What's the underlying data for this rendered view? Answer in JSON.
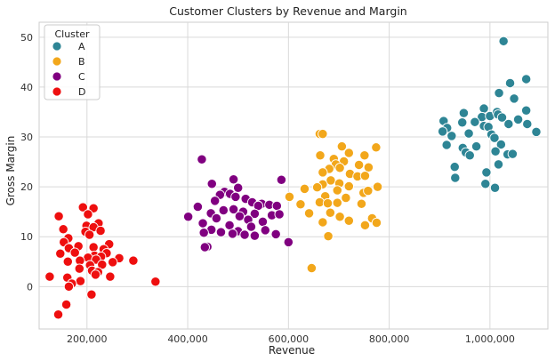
{
  "chart_data": {
    "type": "scatter",
    "title": "Customer Clusters by Revenue and Margin",
    "xlabel": "Revenue",
    "ylabel": "Gross Margin",
    "xlim": [
      105000,
      1115000
    ],
    "ylim": [
      -8.5,
      53
    ],
    "x_ticks": [
      200000,
      400000,
      600000,
      800000,
      1000000
    ],
    "x_tick_labels": [
      "200,000",
      "400,000",
      "600,000",
      "800,000",
      "1,000,000"
    ],
    "y_ticks": [
      0,
      10,
      20,
      30,
      40,
      50
    ],
    "y_tick_labels": [
      "0",
      "10",
      "20",
      "30",
      "40",
      "50"
    ],
    "grid": true,
    "legend": {
      "title": "Cluster",
      "placement": "top-left"
    },
    "series": [
      {
        "name": "A",
        "color": "#2e8595",
        "points": [
          [
            1027000,
            49.2
          ],
          [
            1072000,
            41.6
          ],
          [
            1040000,
            40.8
          ],
          [
            1018000,
            38.8
          ],
          [
            1048000,
            37.7
          ],
          [
            988000,
            35.7
          ],
          [
            1072000,
            35.3
          ],
          [
            948000,
            34.8
          ],
          [
            984000,
            34.0
          ],
          [
            1000000,
            34.2
          ],
          [
            1014000,
            35.0
          ],
          [
            1016000,
            34.5
          ],
          [
            1024000,
            33.9
          ],
          [
            908000,
            33.2
          ],
          [
            1056000,
            33.5
          ],
          [
            970000,
            33.0
          ],
          [
            945000,
            32.9
          ],
          [
            988000,
            32.2
          ],
          [
            1037000,
            32.6
          ],
          [
            1074000,
            32.6
          ],
          [
            997000,
            32.0
          ],
          [
            915000,
            31.8
          ],
          [
            906000,
            31.1
          ],
          [
            924000,
            30.2
          ],
          [
            958000,
            30.7
          ],
          [
            1003000,
            30.5
          ],
          [
            1009000,
            29.8
          ],
          [
            1092000,
            31.0
          ],
          [
            914000,
            28.4
          ],
          [
            946000,
            27.8
          ],
          [
            973000,
            28.1
          ],
          [
            1022000,
            28.5
          ],
          [
            952000,
            26.9
          ],
          [
            1011000,
            27.1
          ],
          [
            1035000,
            26.5
          ],
          [
            960000,
            26.3
          ],
          [
            1045000,
            26.6
          ],
          [
            930000,
            24.0
          ],
          [
            1017000,
            24.5
          ],
          [
            931000,
            21.8
          ],
          [
            993000,
            22.9
          ],
          [
            991000,
            20.6
          ],
          [
            1010000,
            19.8
          ]
        ]
      },
      {
        "name": "B",
        "color": "#f2a71b",
        "points": [
          [
            662000,
            30.6
          ],
          [
            668000,
            30.6
          ],
          [
            706000,
            28.1
          ],
          [
            720000,
            26.8
          ],
          [
            663000,
            26.3
          ],
          [
            751000,
            26.3
          ],
          [
            774000,
            27.9
          ],
          [
            690000,
            25.6
          ],
          [
            710000,
            25.1
          ],
          [
            694000,
            24.5
          ],
          [
            740000,
            24.4
          ],
          [
            681000,
            23.6
          ],
          [
            702000,
            23.8
          ],
          [
            759000,
            23.9
          ],
          [
            668000,
            22.9
          ],
          [
            722000,
            22.6
          ],
          [
            737000,
            22.1
          ],
          [
            752000,
            22.2
          ],
          [
            684000,
            21.3
          ],
          [
            701000,
            20.7
          ],
          [
            668000,
            20.5
          ],
          [
            720000,
            20.1
          ],
          [
            777000,
            20.0
          ],
          [
            602000,
            18.0
          ],
          [
            632000,
            19.6
          ],
          [
            657000,
            19.9
          ],
          [
            697000,
            19.3
          ],
          [
            749000,
            18.8
          ],
          [
            758000,
            19.2
          ],
          [
            673000,
            18.1
          ],
          [
            714000,
            17.8
          ],
          [
            662000,
            16.9
          ],
          [
            678000,
            16.7
          ],
          [
            697000,
            16.8
          ],
          [
            745000,
            16.6
          ],
          [
            624000,
            16.5
          ],
          [
            641000,
            14.7
          ],
          [
            683000,
            14.8
          ],
          [
            702000,
            14.0
          ],
          [
            720000,
            13.2
          ],
          [
            766000,
            13.7
          ],
          [
            775000,
            12.8
          ],
          [
            752000,
            12.3
          ],
          [
            668000,
            12.9
          ],
          [
            679000,
            10.1
          ],
          [
            646000,
            3.7
          ]
        ]
      },
      {
        "name": "C",
        "color": "#800080",
        "points": [
          [
            428000,
            25.5
          ],
          [
            491000,
            21.5
          ],
          [
            586000,
            21.4
          ],
          [
            448000,
            20.6
          ],
          [
            500000,
            19.8
          ],
          [
            473000,
            19.0
          ],
          [
            484000,
            18.6
          ],
          [
            464000,
            18.4
          ],
          [
            495000,
            18.0
          ],
          [
            515000,
            17.6
          ],
          [
            454000,
            17.2
          ],
          [
            528000,
            16.9
          ],
          [
            547000,
            16.6
          ],
          [
            562000,
            16.4
          ],
          [
            540000,
            16.2
          ],
          [
            577000,
            16.2
          ],
          [
            420000,
            16.0
          ],
          [
            491000,
            15.5
          ],
          [
            471000,
            15.3
          ],
          [
            510000,
            15.0
          ],
          [
            446000,
            14.7
          ],
          [
            533000,
            14.6
          ],
          [
            567000,
            14.3
          ],
          [
            503000,
            14.1
          ],
          [
            582000,
            14.5
          ],
          [
            401000,
            14.0
          ],
          [
            457000,
            13.7
          ],
          [
            520000,
            13.4
          ],
          [
            549000,
            13.0
          ],
          [
            430000,
            12.7
          ],
          [
            483000,
            12.3
          ],
          [
            526000,
            12.0
          ],
          [
            447000,
            11.4
          ],
          [
            500000,
            11.1
          ],
          [
            554000,
            11.3
          ],
          [
            466000,
            10.9
          ],
          [
            489000,
            10.6
          ],
          [
            432000,
            10.8
          ],
          [
            575000,
            10.5
          ],
          [
            513000,
            10.4
          ],
          [
            533000,
            10.2
          ],
          [
            439000,
            8.0
          ],
          [
            434000,
            7.9
          ],
          [
            600000,
            8.9
          ]
        ]
      },
      {
        "name": "D",
        "color": "#ee0f0f",
        "points": [
          [
            192000,
            15.9
          ],
          [
            213000,
            15.7
          ],
          [
            202000,
            14.5
          ],
          [
            144000,
            14.1
          ],
          [
            223000,
            12.7
          ],
          [
            199000,
            12.2
          ],
          [
            213000,
            11.9
          ],
          [
            153000,
            11.5
          ],
          [
            227000,
            11.2
          ],
          [
            197000,
            11.0
          ],
          [
            205000,
            10.4
          ],
          [
            163000,
            9.7
          ],
          [
            154000,
            8.9
          ],
          [
            183000,
            8.1
          ],
          [
            244000,
            8.5
          ],
          [
            213000,
            7.9
          ],
          [
            164000,
            7.7
          ],
          [
            233000,
            7.5
          ],
          [
            176000,
            6.8
          ],
          [
            147000,
            6.6
          ],
          [
            215000,
            6.2
          ],
          [
            239000,
            6.7
          ],
          [
            202000,
            5.8
          ],
          [
            228000,
            6.0
          ],
          [
            264000,
            5.7
          ],
          [
            186000,
            5.2
          ],
          [
            218000,
            5.4
          ],
          [
            162000,
            5.0
          ],
          [
            251000,
            4.9
          ],
          [
            292000,
            5.2
          ],
          [
            206000,
            4.3
          ],
          [
            230000,
            4.4
          ],
          [
            185000,
            3.6
          ],
          [
            210000,
            3.2
          ],
          [
            222000,
            2.9
          ],
          [
            126000,
            2.0
          ],
          [
            161000,
            1.8
          ],
          [
            217000,
            2.4
          ],
          [
            246000,
            2.0
          ],
          [
            187000,
            1.1
          ],
          [
            170000,
            0.6
          ],
          [
            164000,
            0.0
          ],
          [
            336000,
            1.0
          ],
          [
            209000,
            -1.6
          ],
          [
            159000,
            -3.6
          ],
          [
            143000,
            -5.6
          ]
        ]
      }
    ]
  }
}
